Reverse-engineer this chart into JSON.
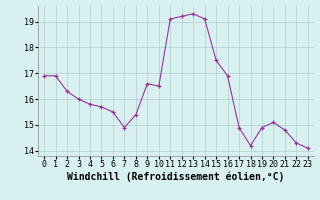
{
  "x": [
    0,
    1,
    2,
    3,
    4,
    5,
    6,
    7,
    8,
    9,
    10,
    11,
    12,
    13,
    14,
    15,
    16,
    17,
    18,
    19,
    20,
    21,
    22,
    23
  ],
  "y": [
    16.9,
    16.9,
    16.3,
    16.0,
    15.8,
    15.7,
    15.5,
    14.9,
    15.4,
    16.6,
    16.5,
    19.1,
    19.2,
    19.3,
    19.1,
    17.5,
    16.9,
    14.9,
    14.2,
    14.9,
    15.1,
    14.8,
    14.3,
    14.1
  ],
  "line_color": "#993399",
  "marker_color": "#993399",
  "bg_color": "#d8f0f0",
  "grid_color": "#b0d0d0",
  "xlabel": "Windchill (Refroidissement éolien,°C)",
  "ylim": [
    13.8,
    19.6
  ],
  "xlim": [
    -0.5,
    23.5
  ],
  "yticks": [
    14,
    15,
    16,
    17,
    18,
    19
  ],
  "xticks": [
    0,
    1,
    2,
    3,
    4,
    5,
    6,
    7,
    8,
    9,
    10,
    11,
    12,
    13,
    14,
    15,
    16,
    17,
    18,
    19,
    20,
    21,
    22,
    23
  ],
  "tick_fontsize": 6,
  "xlabel_fontsize": 7
}
